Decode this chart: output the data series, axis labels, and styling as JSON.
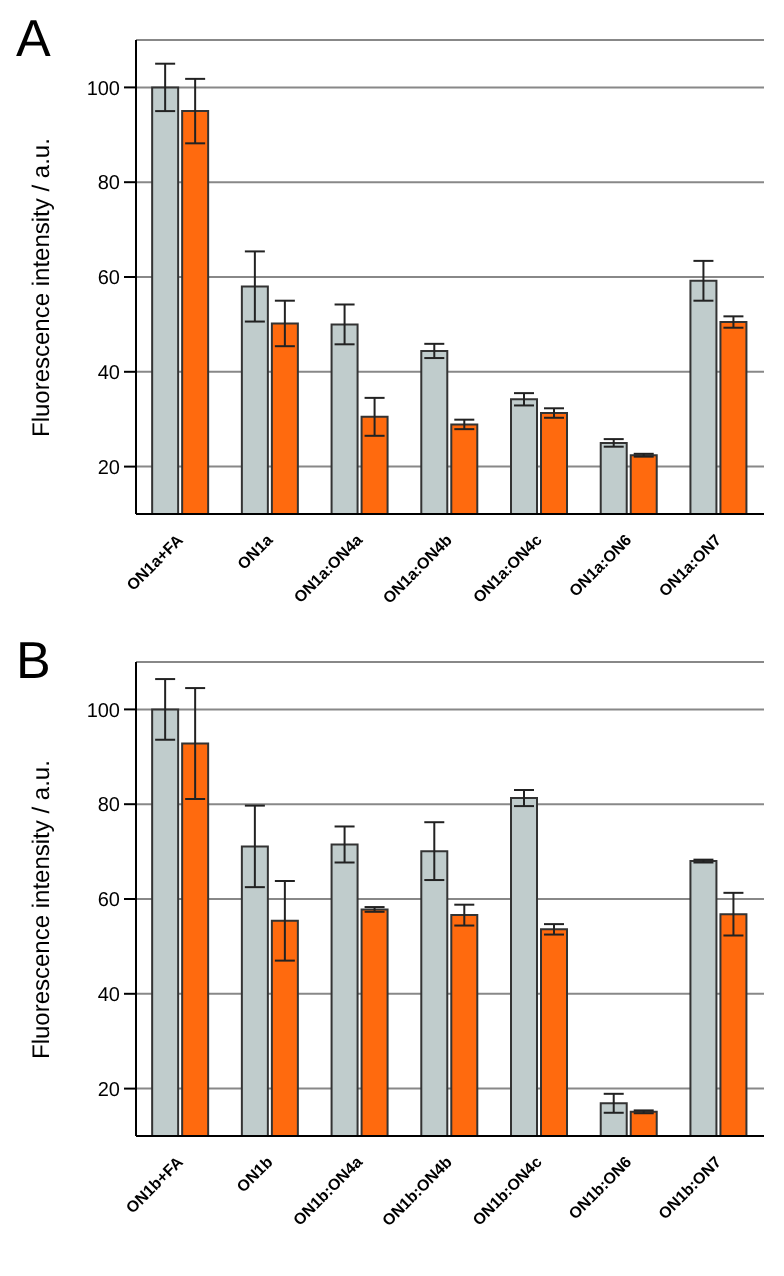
{
  "chart_data": [
    {
      "type": "bar",
      "title": "A",
      "ylabel": "Fluorescence intensity / a.u.",
      "categories": [
        "ON1a+FA",
        "ON1a",
        "ON1a:ON4a",
        "ON1a:ON4b",
        "ON1a:ON4c",
        "ON1a:ON6",
        "ON1a:ON7"
      ],
      "series": [
        {
          "color": "#c0cccc",
          "values": [
            100,
            58,
            50,
            44.4,
            34.2,
            25,
            59.2
          ],
          "errors": [
            5,
            7.4,
            4.2,
            1.5,
            1.3,
            0.8,
            4.2
          ]
        },
        {
          "color": "#ff6a0e",
          "values": [
            95,
            50.2,
            30.5,
            28.9,
            31.3,
            22.4,
            50.5
          ],
          "errors": [
            6.8,
            4.8,
            4,
            1,
            1,
            0.3,
            1.2
          ]
        }
      ],
      "ylim": [
        10,
        110
      ],
      "yticks": [
        20,
        40,
        60,
        80,
        100
      ],
      "grid": "y"
    },
    {
      "type": "bar",
      "title": "B",
      "ylabel": "Fluorescence intensity / a.u.",
      "categories": [
        "ON1b+FA",
        "ON1b",
        "ON1b:ON4a",
        "ON1b:ON4b",
        "ON1b:ON4c",
        "ON1b:ON6",
        "ON1b:ON7"
      ],
      "series": [
        {
          "color": "#c0cccc",
          "values": [
            100,
            71.1,
            71.5,
            70.1,
            81.3,
            16.9,
            68
          ],
          "errors": [
            6.4,
            8.6,
            3.8,
            6.1,
            1.7,
            2,
            0.3
          ]
        },
        {
          "color": "#ff6a0e",
          "values": [
            92.8,
            55.4,
            57.8,
            56.6,
            53.6,
            15.1,
            56.8
          ],
          "errors": [
            11.7,
            8.4,
            0.5,
            2.2,
            1.1,
            0.3,
            4.5
          ]
        }
      ],
      "ylim": [
        10,
        110
      ],
      "yticks": [
        20,
        40,
        60,
        80,
        100
      ],
      "grid": "y"
    }
  ]
}
